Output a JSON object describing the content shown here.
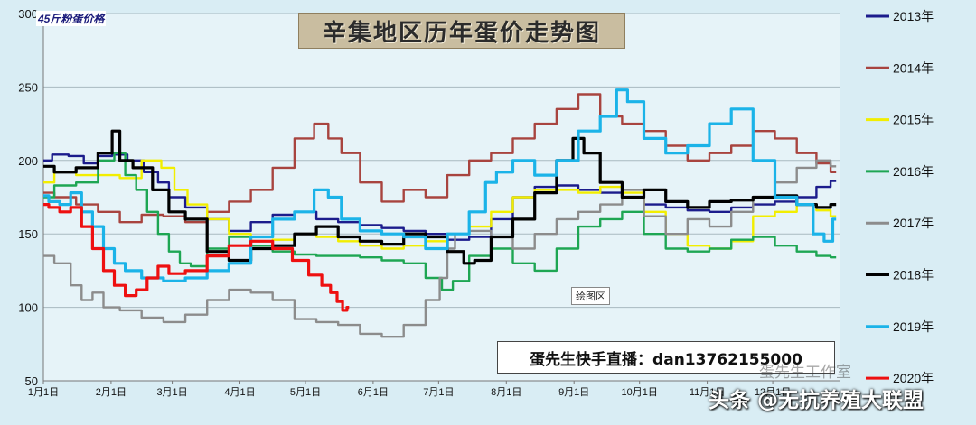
{
  "chart_data": {
    "type": "line",
    "title": "辛集地区历年蛋价走势图",
    "unit_label": "45斤粉蛋价格",
    "ylim": [
      50,
      300
    ],
    "y_ticks": [
      "300",
      "250",
      "200",
      "150",
      "100",
      "50"
    ],
    "x_ticks": [
      "1月1日",
      "2月1日",
      "3月1日",
      "4月1日",
      "5月1日",
      "6月1日",
      "7月1日",
      "8月1日",
      "9月1日",
      "10月1日",
      "11月1日",
      "12月1日"
    ],
    "x_unit": "day-of-year",
    "xlim": [
      0,
      365
    ],
    "grid": "horizontal",
    "legend_position": "right",
    "series": [
      {
        "name": "2013年",
        "color": "#1c1c8c",
        "values": [
          [
            0,
            200
          ],
          [
            8,
            204
          ],
          [
            15,
            203
          ],
          [
            22,
            198
          ],
          [
            28,
            203
          ],
          [
            35,
            204
          ],
          [
            42,
            200
          ],
          [
            50,
            192
          ],
          [
            55,
            185
          ],
          [
            60,
            175
          ],
          [
            70,
            168
          ],
          [
            80,
            160
          ],
          [
            90,
            152
          ],
          [
            100,
            158
          ],
          [
            110,
            163
          ],
          [
            120,
            165
          ],
          [
            130,
            160
          ],
          [
            140,
            158
          ],
          [
            150,
            156
          ],
          [
            160,
            154
          ],
          [
            170,
            152
          ],
          [
            180,
            150
          ],
          [
            190,
            146
          ],
          [
            200,
            148
          ],
          [
            210,
            160
          ],
          [
            220,
            175
          ],
          [
            230,
            182
          ],
          [
            240,
            183
          ],
          [
            250,
            180
          ],
          [
            260,
            178
          ],
          [
            270,
            175
          ],
          [
            280,
            170
          ],
          [
            290,
            168
          ],
          [
            300,
            166
          ],
          [
            310,
            165
          ],
          [
            320,
            168
          ],
          [
            330,
            170
          ],
          [
            340,
            172
          ],
          [
            350,
            175
          ],
          [
            358,
            182
          ],
          [
            363,
            186
          ]
        ]
      },
      {
        "name": "2014年",
        "color": "#a8443f",
        "values": [
          [
            0,
            178
          ],
          [
            10,
            175
          ],
          [
            20,
            170
          ],
          [
            30,
            165
          ],
          [
            40,
            158
          ],
          [
            50,
            163
          ],
          [
            60,
            162
          ],
          [
            70,
            158
          ],
          [
            80,
            165
          ],
          [
            90,
            172
          ],
          [
            100,
            180
          ],
          [
            110,
            195
          ],
          [
            120,
            215
          ],
          [
            128,
            225
          ],
          [
            133,
            215
          ],
          [
            140,
            205
          ],
          [
            150,
            185
          ],
          [
            160,
            172
          ],
          [
            170,
            180
          ],
          [
            180,
            175
          ],
          [
            190,
            190
          ],
          [
            200,
            200
          ],
          [
            210,
            205
          ],
          [
            220,
            215
          ],
          [
            230,
            225
          ],
          [
            240,
            235
          ],
          [
            250,
            245
          ],
          [
            260,
            230
          ],
          [
            270,
            225
          ],
          [
            280,
            220
          ],
          [
            290,
            210
          ],
          [
            300,
            200
          ],
          [
            310,
            205
          ],
          [
            320,
            210
          ],
          [
            330,
            220
          ],
          [
            340,
            215
          ],
          [
            350,
            205
          ],
          [
            358,
            198
          ],
          [
            363,
            192
          ]
        ]
      },
      {
        "name": "2015年",
        "color": "#f2ee00",
        "values": [
          [
            0,
            185
          ],
          [
            10,
            192
          ],
          [
            20,
            190
          ],
          [
            30,
            190
          ],
          [
            40,
            188
          ],
          [
            50,
            200
          ],
          [
            58,
            195
          ],
          [
            62,
            180
          ],
          [
            70,
            170
          ],
          [
            80,
            160
          ],
          [
            90,
            150
          ],
          [
            100,
            145
          ],
          [
            110,
            146
          ],
          [
            120,
            150
          ],
          [
            130,
            148
          ],
          [
            140,
            145
          ],
          [
            150,
            142
          ],
          [
            160,
            140
          ],
          [
            170,
            142
          ],
          [
            180,
            145
          ],
          [
            190,
            150
          ],
          [
            200,
            155
          ],
          [
            210,
            165
          ],
          [
            220,
            175
          ],
          [
            230,
            180
          ],
          [
            240,
            180
          ],
          [
            250,
            178
          ],
          [
            260,
            182
          ],
          [
            270,
            178
          ],
          [
            280,
            165
          ],
          [
            290,
            150
          ],
          [
            300,
            142
          ],
          [
            310,
            140
          ],
          [
            320,
            145
          ],
          [
            330,
            162
          ],
          [
            340,
            165
          ],
          [
            350,
            170
          ],
          [
            358,
            166
          ],
          [
            363,
            162
          ]
        ]
      },
      {
        "name": "2016年",
        "color": "#1ea653",
        "values": [
          [
            0,
            175
          ],
          [
            10,
            183
          ],
          [
            20,
            185
          ],
          [
            30,
            200
          ],
          [
            35,
            205
          ],
          [
            40,
            190
          ],
          [
            45,
            180
          ],
          [
            50,
            165
          ],
          [
            55,
            150
          ],
          [
            60,
            138
          ],
          [
            65,
            130
          ],
          [
            70,
            128
          ],
          [
            80,
            140
          ],
          [
            90,
            148
          ],
          [
            100,
            142
          ],
          [
            110,
            138
          ],
          [
            120,
            136
          ],
          [
            130,
            135
          ],
          [
            140,
            135
          ],
          [
            150,
            134
          ],
          [
            160,
            132
          ],
          [
            170,
            130
          ],
          [
            180,
            120
          ],
          [
            185,
            112
          ],
          [
            190,
            118
          ],
          [
            200,
            135
          ],
          [
            210,
            140
          ],
          [
            220,
            130
          ],
          [
            230,
            125
          ],
          [
            240,
            140
          ],
          [
            250,
            155
          ],
          [
            260,
            160
          ],
          [
            270,
            165
          ],
          [
            280,
            150
          ],
          [
            290,
            140
          ],
          [
            300,
            138
          ],
          [
            310,
            140
          ],
          [
            320,
            146
          ],
          [
            330,
            148
          ],
          [
            340,
            142
          ],
          [
            350,
            138
          ],
          [
            358,
            135
          ],
          [
            363,
            134
          ]
        ]
      },
      {
        "name": "2017年",
        "color": "#8c8c8c",
        "values": [
          [
            0,
            135
          ],
          [
            10,
            130
          ],
          [
            15,
            115
          ],
          [
            20,
            105
          ],
          [
            25,
            110
          ],
          [
            30,
            100
          ],
          [
            40,
            98
          ],
          [
            50,
            93
          ],
          [
            60,
            90
          ],
          [
            70,
            95
          ],
          [
            80,
            105
          ],
          [
            90,
            112
          ],
          [
            100,
            110
          ],
          [
            110,
            105
          ],
          [
            120,
            92
          ],
          [
            130,
            90
          ],
          [
            140,
            88
          ],
          [
            150,
            82
          ],
          [
            160,
            80
          ],
          [
            170,
            88
          ],
          [
            180,
            105
          ],
          [
            183,
            120
          ],
          [
            187,
            140
          ],
          [
            190,
            150
          ],
          [
            200,
            152
          ],
          [
            210,
            148
          ],
          [
            220,
            140
          ],
          [
            230,
            150
          ],
          [
            240,
            160
          ],
          [
            250,
            165
          ],
          [
            260,
            170
          ],
          [
            270,
            180
          ],
          [
            280,
            162
          ],
          [
            290,
            150
          ],
          [
            300,
            160
          ],
          [
            310,
            155
          ],
          [
            320,
            165
          ],
          [
            330,
            175
          ],
          [
            340,
            185
          ],
          [
            350,
            195
          ],
          [
            358,
            200
          ],
          [
            363,
            196
          ]
        ]
      },
      {
        "name": "2018年",
        "color": "#000000",
        "values": [
          [
            0,
            196
          ],
          [
            10,
            192
          ],
          [
            20,
            195
          ],
          [
            30,
            205
          ],
          [
            33,
            220
          ],
          [
            37,
            200
          ],
          [
            45,
            195
          ],
          [
            55,
            180
          ],
          [
            60,
            165
          ],
          [
            70,
            160
          ],
          [
            80,
            138
          ],
          [
            90,
            132
          ],
          [
            100,
            140
          ],
          [
            110,
            142
          ],
          [
            120,
            150
          ],
          [
            130,
            155
          ],
          [
            140,
            148
          ],
          [
            150,
            145
          ],
          [
            160,
            143
          ],
          [
            170,
            150
          ],
          [
            180,
            148
          ],
          [
            190,
            138
          ],
          [
            195,
            130
          ],
          [
            200,
            132
          ],
          [
            210,
            148
          ],
          [
            220,
            160
          ],
          [
            230,
            178
          ],
          [
            240,
            200
          ],
          [
            245,
            215
          ],
          [
            250,
            205
          ],
          [
            260,
            185
          ],
          [
            270,
            175
          ],
          [
            280,
            180
          ],
          [
            290,
            172
          ],
          [
            300,
            168
          ],
          [
            310,
            172
          ],
          [
            320,
            173
          ],
          [
            330,
            175
          ],
          [
            340,
            176
          ],
          [
            350,
            170
          ],
          [
            358,
            168
          ],
          [
            363,
            170
          ]
        ]
      },
      {
        "name": "2019年",
        "color": "#1bb3e8",
        "values": [
          [
            0,
            176
          ],
          [
            5,
            172
          ],
          [
            10,
            170
          ],
          [
            15,
            178
          ],
          [
            20,
            165
          ],
          [
            25,
            155
          ],
          [
            30,
            140
          ],
          [
            35,
            130
          ],
          [
            40,
            125
          ],
          [
            50,
            120
          ],
          [
            60,
            118
          ],
          [
            70,
            120
          ],
          [
            80,
            125
          ],
          [
            90,
            130
          ],
          [
            100,
            148
          ],
          [
            110,
            160
          ],
          [
            120,
            165
          ],
          [
            128,
            180
          ],
          [
            133,
            175
          ],
          [
            140,
            160
          ],
          [
            150,
            152
          ],
          [
            160,
            150
          ],
          [
            170,
            148
          ],
          [
            180,
            140
          ],
          [
            190,
            150
          ],
          [
            200,
            165
          ],
          [
            205,
            185
          ],
          [
            210,
            192
          ],
          [
            220,
            200
          ],
          [
            230,
            190
          ],
          [
            240,
            200
          ],
          [
            250,
            220
          ],
          [
            260,
            230
          ],
          [
            265,
            248
          ],
          [
            270,
            240
          ],
          [
            280,
            215
          ],
          [
            290,
            205
          ],
          [
            300,
            210
          ],
          [
            310,
            225
          ],
          [
            320,
            235
          ],
          [
            330,
            200
          ],
          [
            340,
            175
          ],
          [
            350,
            170
          ],
          [
            355,
            150
          ],
          [
            360,
            145
          ],
          [
            363,
            160
          ]
        ]
      },
      {
        "name": "2020年",
        "color": "#ee1010",
        "values": [
          [
            0,
            170
          ],
          [
            5,
            168
          ],
          [
            10,
            165
          ],
          [
            15,
            168
          ],
          [
            20,
            155
          ],
          [
            25,
            140
          ],
          [
            30,
            125
          ],
          [
            35,
            115
          ],
          [
            40,
            108
          ],
          [
            45,
            112
          ],
          [
            50,
            120
          ],
          [
            55,
            128
          ],
          [
            60,
            123
          ],
          [
            70,
            125
          ],
          [
            80,
            135
          ],
          [
            90,
            142
          ],
          [
            100,
            145
          ],
          [
            110,
            140
          ],
          [
            118,
            132
          ],
          [
            125,
            122
          ],
          [
            130,
            115
          ],
          [
            133,
            110
          ],
          [
            136,
            104
          ],
          [
            138,
            98
          ],
          [
            140,
            100
          ]
        ]
      }
    ]
  },
  "overlay": {
    "plot_area_tag": "绘图区",
    "broadcast": "蛋先生快手直播：dan13762155000",
    "watermark_small": "蛋先生工作室",
    "watermark_large": "头条 @无抗养殖大联盟"
  }
}
